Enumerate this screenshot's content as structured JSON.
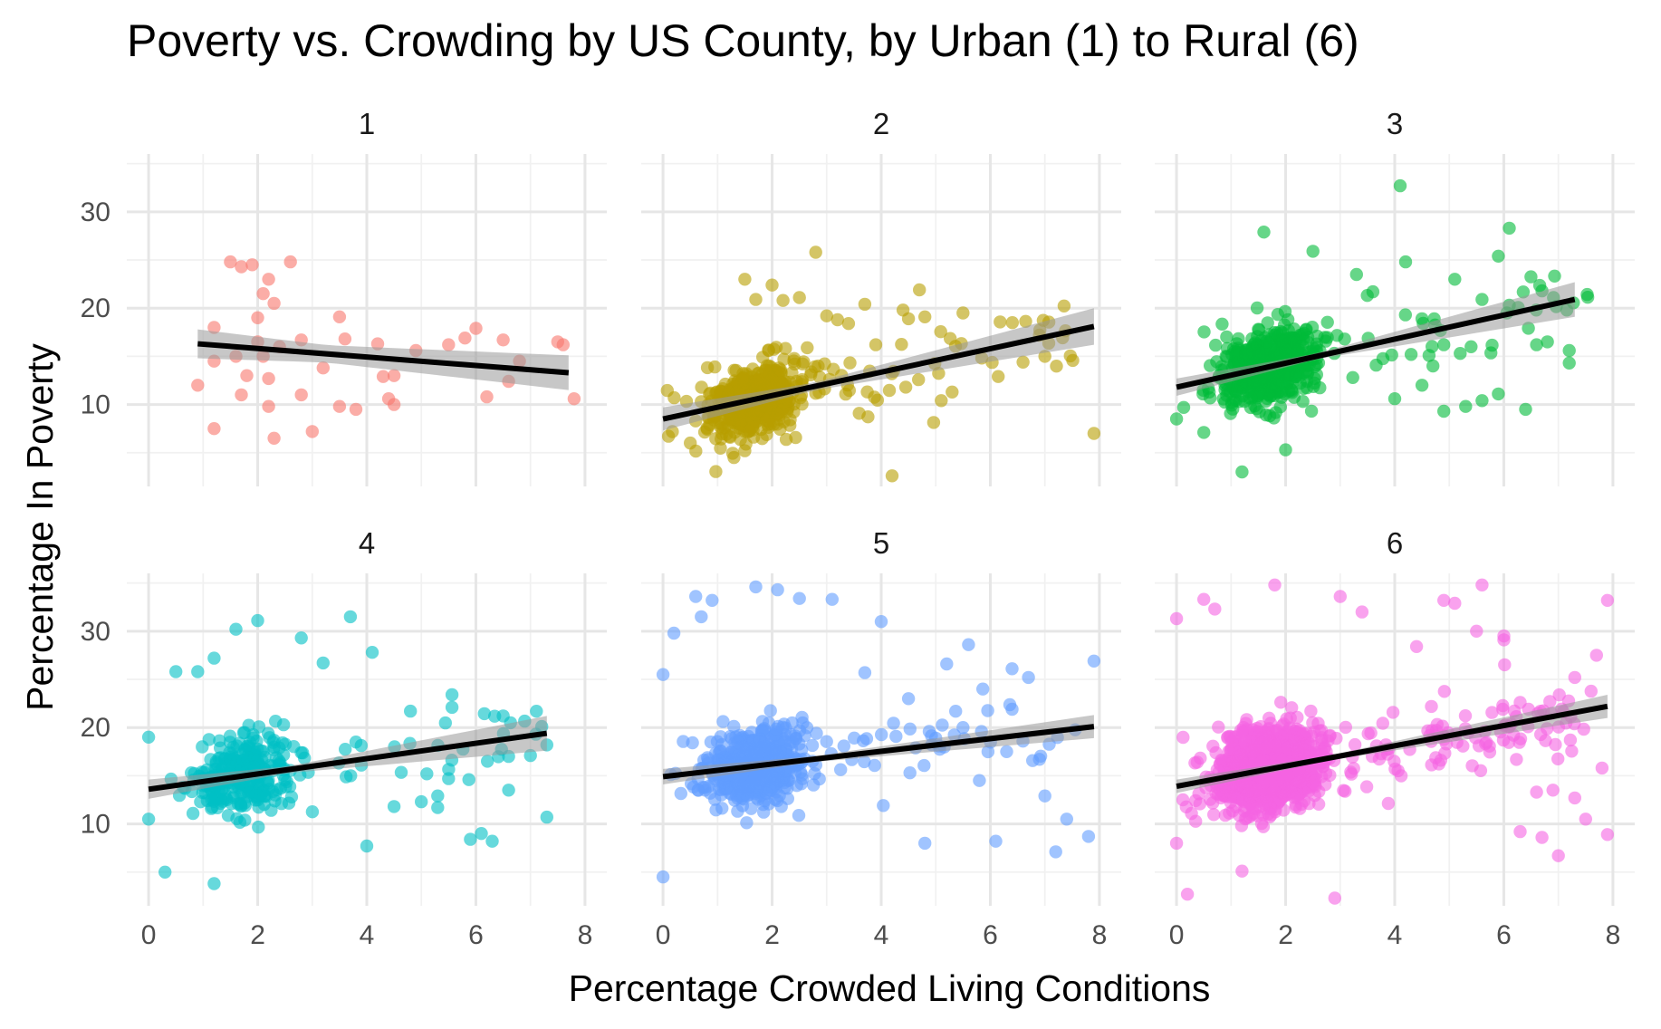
{
  "chart_data": {
    "type": "scatter",
    "title": "Poverty vs. Crowding by US County, by Urban (1) to Rural (6)",
    "xlabel": "Percentage Crowded Living Conditions",
    "ylabel": "Percentage In Poverty",
    "xlim": [
      -0.4,
      8.4
    ],
    "ylim": [
      1.5,
      36
    ],
    "x_ticks": [
      0,
      2,
      4,
      6,
      8
    ],
    "y_ticks": [
      10,
      20,
      30
    ],
    "grid": true,
    "legend": "none",
    "facets": [
      {
        "label": "1",
        "color": "#F8766D",
        "trend": {
          "x": [
            0.9,
            7.7
          ],
          "y": [
            16.3,
            13.3
          ]
        },
        "band_halfwidth": [
          1.5,
          0.9,
          1.8
        ],
        "n_points": 45,
        "points": [
          [
            0.9,
            12.0
          ],
          [
            1.2,
            7.5
          ],
          [
            1.2,
            18.0
          ],
          [
            1.2,
            14.5
          ],
          [
            1.5,
            24.8
          ],
          [
            1.6,
            15.0
          ],
          [
            1.7,
            24.3
          ],
          [
            1.7,
            11.0
          ],
          [
            1.8,
            13.0
          ],
          [
            1.9,
            24.5
          ],
          [
            2.0,
            16.5
          ],
          [
            2.0,
            19.0
          ],
          [
            2.1,
            21.5
          ],
          [
            2.1,
            15.0
          ],
          [
            2.2,
            23.0
          ],
          [
            2.2,
            12.7
          ],
          [
            2.2,
            9.8
          ],
          [
            2.3,
            20.5
          ],
          [
            2.3,
            6.5
          ],
          [
            2.4,
            16.0
          ],
          [
            2.6,
            24.8
          ],
          [
            2.8,
            16.7
          ],
          [
            2.8,
            11.0
          ],
          [
            3.0,
            7.2
          ],
          [
            3.2,
            13.8
          ],
          [
            3.5,
            19.1
          ],
          [
            3.5,
            9.8
          ],
          [
            3.6,
            16.8
          ],
          [
            3.8,
            9.5
          ],
          [
            4.2,
            16.3
          ],
          [
            4.3,
            12.9
          ],
          [
            4.4,
            10.6
          ],
          [
            4.5,
            13.0
          ],
          [
            4.5,
            10.0
          ],
          [
            4.9,
            15.6
          ],
          [
            5.5,
            16.2
          ],
          [
            5.8,
            16.9
          ],
          [
            6.0,
            17.9
          ],
          [
            6.2,
            10.8
          ],
          [
            6.5,
            16.7
          ],
          [
            6.6,
            12.4
          ],
          [
            6.8,
            14.5
          ],
          [
            7.5,
            16.5
          ],
          [
            7.6,
            16.2
          ],
          [
            7.8,
            10.6
          ]
        ]
      },
      {
        "label": "2",
        "color": "#B79F00",
        "trend": {
          "x": [
            0,
            7.9
          ],
          "y": [
            8.5,
            18.1
          ]
        },
        "band_halfwidth": [
          1.2,
          0.4,
          1.9
        ],
        "n_points": 520,
        "points": [
          [
            0.5,
            6.0
          ],
          [
            0.7,
            10.3
          ],
          [
            1.3,
            4.5
          ],
          [
            1.5,
            23.0
          ],
          [
            1.7,
            20.9
          ],
          [
            2.0,
            22.4
          ],
          [
            2.2,
            20.8
          ],
          [
            2.5,
            21.1
          ],
          [
            2.8,
            25.8
          ],
          [
            3.0,
            19.2
          ],
          [
            3.2,
            18.8
          ],
          [
            3.4,
            18.4
          ],
          [
            3.7,
            20.4
          ],
          [
            3.9,
            16.2
          ],
          [
            4.2,
            2.6
          ],
          [
            4.4,
            19.8
          ],
          [
            4.5,
            18.9
          ],
          [
            4.7,
            21.9
          ],
          [
            4.8,
            19.1
          ],
          [
            5.1,
            10.4
          ],
          [
            5.3,
            11.3
          ],
          [
            5.5,
            19.5
          ],
          [
            6.6,
            14.4
          ],
          [
            6.9,
            17.2
          ],
          [
            7.0,
            15.0
          ],
          [
            7.9,
            7.0
          ]
        ]
      },
      {
        "label": "3",
        "color": "#00BA38",
        "trend": {
          "x": [
            0,
            7.3
          ],
          "y": [
            11.8,
            20.9
          ]
        },
        "band_halfwidth": [
          0.9,
          0.3,
          1.8
        ],
        "n_points": 530,
        "points": [
          [
            0.0,
            8.5
          ],
          [
            0.5,
            7.1
          ],
          [
            0.6,
            11.3
          ],
          [
            1.2,
            3.0
          ],
          [
            1.5,
            17.8
          ],
          [
            1.6,
            27.9
          ],
          [
            2.0,
            5.3
          ],
          [
            2.5,
            25.9
          ],
          [
            3.3,
            23.5
          ],
          [
            3.6,
            21.7
          ],
          [
            4.0,
            10.6
          ],
          [
            4.1,
            32.7
          ],
          [
            4.2,
            24.8
          ],
          [
            4.3,
            15.2
          ],
          [
            4.5,
            18.9
          ],
          [
            4.5,
            12.0
          ],
          [
            4.7,
            14.0
          ],
          [
            4.9,
            9.3
          ],
          [
            4.9,
            16.2
          ],
          [
            5.1,
            23.0
          ],
          [
            5.2,
            15.3
          ],
          [
            5.3,
            9.8
          ],
          [
            5.4,
            16.0
          ],
          [
            5.6,
            20.9
          ],
          [
            5.6,
            10.4
          ],
          [
            5.9,
            25.4
          ],
          [
            5.9,
            11.1
          ],
          [
            6.1,
            28.3
          ],
          [
            6.1,
            20.3
          ],
          [
            6.4,
            9.5
          ],
          [
            6.6,
            16.2
          ],
          [
            6.7,
            21.8
          ],
          [
            6.8,
            16.5
          ],
          [
            7.2,
            15.6
          ],
          [
            7.2,
            14.3
          ]
        ]
      },
      {
        "label": "4",
        "color": "#00BFC4",
        "trend": {
          "x": [
            0,
            7.3
          ],
          "y": [
            13.6,
            19.4
          ]
        },
        "band_halfwidth": [
          1.0,
          0.35,
          1.8
        ],
        "n_points": 330,
        "points": [
          [
            0.0,
            19.0
          ],
          [
            0.0,
            10.5
          ],
          [
            0.3,
            5.0
          ],
          [
            0.5,
            25.8
          ],
          [
            0.9,
            25.8
          ],
          [
            1.2,
            3.8
          ],
          [
            1.2,
            27.2
          ],
          [
            1.6,
            30.2
          ],
          [
            2.0,
            31.1
          ],
          [
            2.8,
            29.3
          ],
          [
            3.2,
            26.7
          ],
          [
            3.7,
            31.5
          ],
          [
            3.8,
            18.5
          ],
          [
            3.9,
            16.1
          ],
          [
            4.0,
            7.7
          ],
          [
            4.1,
            27.8
          ],
          [
            4.5,
            11.8
          ],
          [
            4.8,
            21.7
          ],
          [
            5.0,
            12.3
          ],
          [
            5.1,
            15.2
          ],
          [
            5.3,
            12.9
          ],
          [
            5.3,
            11.7
          ],
          [
            5.5,
            14.7
          ],
          [
            5.9,
            8.4
          ],
          [
            6.1,
            9.0
          ],
          [
            6.3,
            8.2
          ],
          [
            6.5,
            21.2
          ],
          [
            6.6,
            13.5
          ],
          [
            6.6,
            17.0
          ],
          [
            7.0,
            17.1
          ],
          [
            7.1,
            19.3
          ],
          [
            7.3,
            18.2
          ],
          [
            7.3,
            10.7
          ]
        ]
      },
      {
        "label": "5",
        "color": "#619CFF",
        "trend": {
          "x": [
            0,
            7.9
          ],
          "y": [
            14.9,
            20.1
          ]
        },
        "band_halfwidth": [
          0.8,
          0.3,
          1.2
        ],
        "n_points": 620,
        "points": [
          [
            0.0,
            4.5
          ],
          [
            0.0,
            25.5
          ],
          [
            0.2,
            29.8
          ],
          [
            0.6,
            33.6
          ],
          [
            0.7,
            31.5
          ],
          [
            0.9,
            33.2
          ],
          [
            1.7,
            34.6
          ],
          [
            2.1,
            34.3
          ],
          [
            2.5,
            33.4
          ],
          [
            3.1,
            33.3
          ],
          [
            3.7,
            25.7
          ],
          [
            4.0,
            31.0
          ],
          [
            4.5,
            23.0
          ],
          [
            4.8,
            8.0
          ],
          [
            5.0,
            18.9
          ],
          [
            5.2,
            26.6
          ],
          [
            5.5,
            20.0
          ],
          [
            5.6,
            28.6
          ],
          [
            5.8,
            14.5
          ],
          [
            6.1,
            8.2
          ],
          [
            6.3,
            17.5
          ],
          [
            6.4,
            21.9
          ],
          [
            6.4,
            26.1
          ],
          [
            6.7,
            25.2
          ],
          [
            6.9,
            16.7
          ],
          [
            7.0,
            12.9
          ],
          [
            7.2,
            7.1
          ],
          [
            7.4,
            10.5
          ],
          [
            7.8,
            8.7
          ],
          [
            7.9,
            26.9
          ]
        ]
      },
      {
        "label": "6",
        "color": "#F564E3",
        "trend": {
          "x": [
            0,
            7.9
          ],
          "y": [
            13.9,
            22.2
          ]
        },
        "band_halfwidth": [
          0.7,
          0.25,
          1.2
        ],
        "n_points": 1350,
        "points": [
          [
            0.0,
            31.3
          ],
          [
            0.0,
            8.0
          ],
          [
            0.2,
            2.7
          ],
          [
            0.5,
            33.3
          ],
          [
            0.7,
            32.3
          ],
          [
            1.2,
            5.1
          ],
          [
            1.8,
            34.8
          ],
          [
            2.9,
            2.3
          ],
          [
            3.0,
            33.6
          ],
          [
            3.4,
            32.0
          ],
          [
            4.4,
            28.4
          ],
          [
            4.9,
            33.2
          ],
          [
            5.1,
            32.9
          ],
          [
            5.5,
            30.0
          ],
          [
            5.6,
            34.8
          ],
          [
            6.0,
            29.5
          ],
          [
            6.0,
            29.1
          ],
          [
            6.3,
            9.2
          ],
          [
            6.3,
            22.6
          ],
          [
            6.6,
            13.3
          ],
          [
            6.7,
            8.6
          ],
          [
            6.9,
            13.5
          ],
          [
            7.0,
            6.7
          ],
          [
            7.3,
            25.2
          ],
          [
            7.3,
            12.7
          ],
          [
            7.5,
            10.5
          ],
          [
            7.7,
            27.5
          ],
          [
            7.8,
            15.8
          ],
          [
            7.9,
            8.9
          ],
          [
            7.9,
            33.2
          ]
        ]
      }
    ]
  }
}
